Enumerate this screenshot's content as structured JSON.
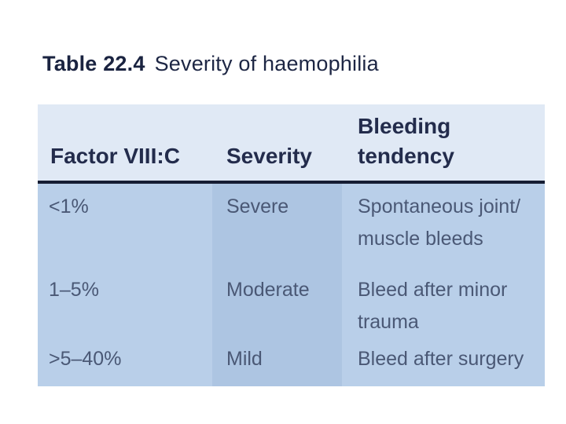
{
  "caption": {
    "label": "Table 22.4",
    "title": "Severity of haemophilia"
  },
  "table": {
    "columns": [
      {
        "header": "Factor VIII:C"
      },
      {
        "header": "Severity"
      },
      {
        "header": "Bleeding tendency"
      }
    ],
    "rows": [
      {
        "factor": "<1%",
        "severity": "Severe",
        "tendency": "Spontaneous joint/ muscle bleeds"
      },
      {
        "factor": "1–5%",
        "severity": "Moderate",
        "tendency": "Bleed after minor trauma"
      },
      {
        "factor": ">5–40%",
        "severity": "Mild",
        "tendency": "Bleed after surgery"
      }
    ]
  },
  "colors": {
    "page_background": "#ffffff",
    "header_background": "#e0e9f5",
    "body_column_background": "#b9cfe9",
    "severity_column_background": "#adc5e2",
    "header_rule": "#161d33",
    "header_text": "#232c4c",
    "body_text": "#4a5875",
    "caption_text": "#1d2644"
  }
}
